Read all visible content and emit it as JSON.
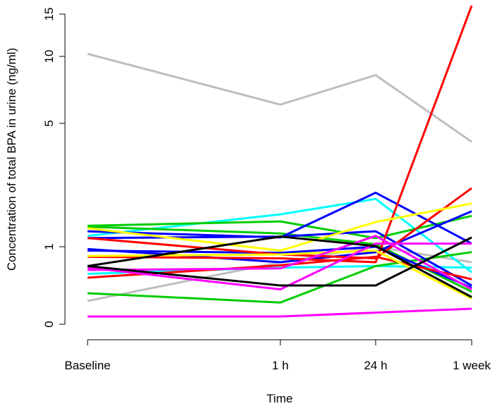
{
  "chart_data": {
    "type": "line",
    "title": "",
    "xlabel": "Time",
    "ylabel": "Concentration of total BPA in urine (ng/ml)",
    "x_categories": [
      "Baseline",
      "1 h",
      "24 h",
      "1 week"
    ],
    "y_scale": "nonlinear",
    "y_ticks": [
      0,
      1,
      5,
      10,
      15
    ],
    "ylim": [
      0,
      15
    ],
    "grid": false,
    "legend": "none",
    "series": [
      {
        "color": "#bebebe",
        "values": [
          10.3,
          6.4,
          8.6,
          4.4
        ]
      },
      {
        "color": "#bebebe",
        "values": [
          0.3,
          0.8,
          1.0,
          0.8
        ]
      },
      {
        "color": "#00ffff",
        "values": [
          1.35,
          2.05,
          2.55,
          0.67
        ]
      },
      {
        "color": "#00ffff",
        "values": [
          0.65,
          0.73,
          0.75,
          0.73
        ]
      },
      {
        "color": "#00cd00",
        "values": [
          1.68,
          1.82,
          1.28,
          2.0
        ]
      },
      {
        "color": "#00cd00",
        "values": [
          1.65,
          1.43,
          1.08,
          0.42
        ]
      },
      {
        "color": "#00cd00",
        "values": [
          0.4,
          0.28,
          0.75,
          0.93
        ]
      },
      {
        "color": "#0000ff",
        "values": [
          1.5,
          1.3,
          2.75,
          1.1
        ]
      },
      {
        "color": "#0000ff",
        "values": [
          1.28,
          1.33,
          1.5,
          0.5
        ]
      },
      {
        "color": "#0000ff",
        "values": [
          0.97,
          0.8,
          0.93,
          2.15
        ]
      },
      {
        "color": "#0000ff",
        "values": [
          0.95,
          0.92,
          1.0,
          0.47
        ]
      },
      {
        "color": "#ff0000",
        "values": [
          0.87,
          0.85,
          0.8,
          16.0
        ]
      },
      {
        "color": "#ff0000",
        "values": [
          1.28,
          0.9,
          0.85,
          2.9
        ]
      },
      {
        "color": "#ff0000",
        "values": [
          0.6,
          0.76,
          0.87,
          0.58
        ]
      },
      {
        "color": "#ffff00",
        "values": [
          1.6,
          0.95,
          1.8,
          2.4
        ]
      },
      {
        "color": "#ffff00",
        "values": [
          0.88,
          0.9,
          0.95,
          0.33
        ]
      },
      {
        "color": "#ff00ff",
        "values": [
          0.1,
          0.1,
          0.15,
          0.2
        ]
      },
      {
        "color": "#ff00ff",
        "values": [
          0.73,
          0.45,
          1.1,
          1.1
        ]
      },
      {
        "color": "#ff00ff",
        "values": [
          0.7,
          0.72,
          1.35,
          0.45
        ]
      },
      {
        "color": "#000000",
        "values": [
          0.75,
          0.5,
          0.5,
          1.3
        ]
      },
      {
        "color": "#000000",
        "values": [
          0.75,
          1.33,
          1.02,
          0.35
        ]
      }
    ]
  }
}
